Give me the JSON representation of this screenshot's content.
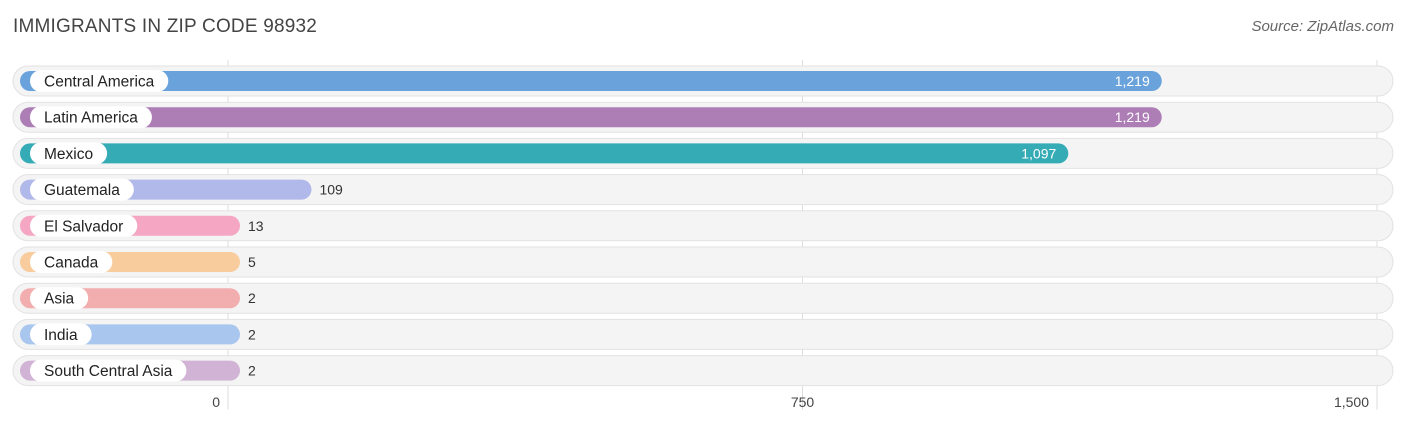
{
  "title": "IMMIGRANTS IN ZIP CODE 98932",
  "source": "Source: ZipAtlas.com",
  "chart_data": {
    "type": "bar",
    "orientation": "horizontal",
    "title": "IMMIGRANTS IN ZIP CODE 98932",
    "categories": [
      "Central America",
      "Latin America",
      "Mexico",
      "Guatemala",
      "El Salvador",
      "Canada",
      "Asia",
      "India",
      "South Central Asia"
    ],
    "values": [
      1219,
      1219,
      1097,
      109,
      13,
      5,
      2,
      2,
      2
    ],
    "value_labels": [
      "1,219",
      "1,219",
      "1,097",
      "109",
      "13",
      "5",
      "2",
      "2",
      "2"
    ],
    "colors": [
      "#6aa3dc",
      "#ad7db6",
      "#35abb6",
      "#b1b8ea",
      "#f5a6c2",
      "#f9cc9d",
      "#f2aeae",
      "#a9c6ee",
      "#d1b3d5"
    ],
    "xticks": [
      0,
      750,
      1500
    ],
    "xtick_labels": [
      "0",
      "750",
      "1,500"
    ],
    "xlim": [
      0,
      1500
    ],
    "grid": true,
    "legend": "none"
  }
}
